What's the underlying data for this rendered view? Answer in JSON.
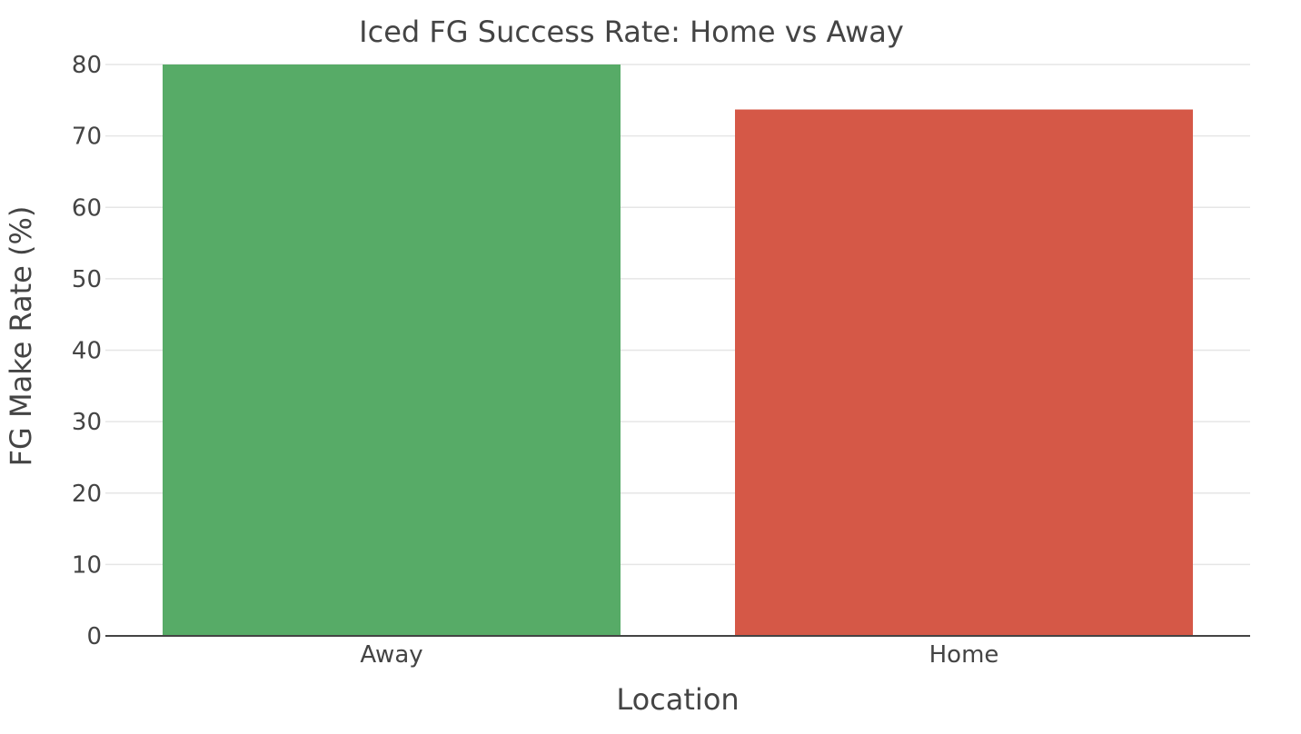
{
  "chart_data": {
    "type": "bar",
    "title": "Iced FG Success Rate: Home vs Away",
    "xlabel": "Location",
    "ylabel": "FG Make Rate (%)",
    "categories": [
      "Away",
      "Home"
    ],
    "values": [
      80.0,
      73.7
    ],
    "colors": [
      "#57ab67",
      "#d55847"
    ],
    "ylim": [
      0,
      80
    ],
    "yticks": [
      0,
      10,
      20,
      30,
      40,
      50,
      60,
      70,
      80
    ],
    "grid": true,
    "legend": "none"
  }
}
